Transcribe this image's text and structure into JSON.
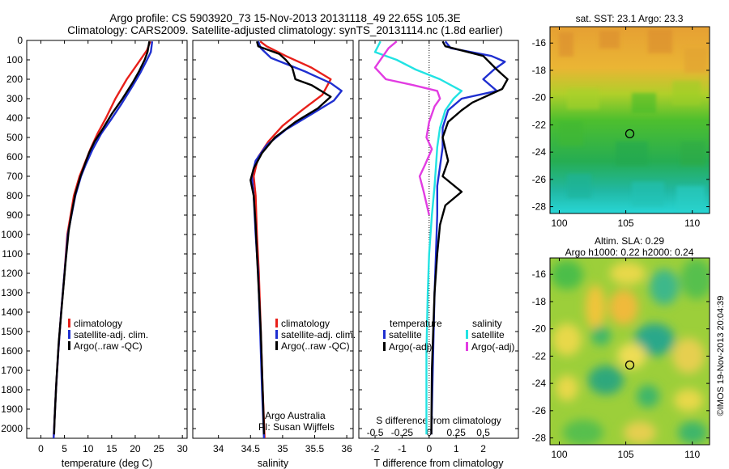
{
  "header": {
    "line1": "Argo profile: CS 5903920_73 15-Nov-2013 20131118_49 22.65S 105.3E",
    "line2": "Climatology: CARS2009. Satellite-adjusted climatology: synTS_20131114.nc (1.8d earlier)"
  },
  "colors": {
    "climatology": "#e8201a",
    "satellite": "#1f2fd0",
    "argo": "#000000",
    "sat_salinity": "#22e3e3",
    "argo_salinity": "#e23ce2"
  },
  "chart_data": [
    {
      "id": "temperature",
      "type": "line",
      "xlabel": "temperature (deg C)",
      "ylabel": "",
      "xlim": [
        -3,
        31
      ],
      "ylim": [
        0,
        2050
      ],
      "xticks": [
        0,
        5,
        10,
        15,
        20,
        25,
        30
      ],
      "yticks": [
        0,
        100,
        200,
        300,
        400,
        500,
        600,
        700,
        800,
        900,
        1000,
        1100,
        1200,
        1300,
        1400,
        1500,
        1600,
        1700,
        1800,
        1900,
        2000
      ],
      "legend": [
        "climatology",
        "satellite-adj. clim.",
        "Argo(..raw -QC)"
      ],
      "series": [
        {
          "name": "climatology",
          "color": "#e8201a",
          "points": [
            [
              23.2,
              5
            ],
            [
              22.5,
              50
            ],
            [
              20.5,
              120
            ],
            [
              18.2,
              200
            ],
            [
              15.8,
              300
            ],
            [
              13.8,
              400
            ],
            [
              12.0,
              480
            ],
            [
              10.5,
              560
            ],
            [
              9.2,
              640
            ],
            [
              8.2,
              700
            ],
            [
              7.0,
              800
            ],
            [
              6.3,
              900
            ],
            [
              5.6,
              1000
            ],
            [
              5.0,
              1200
            ],
            [
              4.3,
              1400
            ],
            [
              3.7,
              1600
            ],
            [
              3.2,
              1800
            ],
            [
              2.8,
              2000
            ],
            [
              2.7,
              2050
            ]
          ]
        },
        {
          "name": "satellite-adj. clim.",
          "color": "#1f2fd0",
          "points": [
            [
              23.6,
              5
            ],
            [
              23.3,
              60
            ],
            [
              22.5,
              100
            ],
            [
              21.0,
              170
            ],
            [
              19.3,
              240
            ],
            [
              17.0,
              330
            ],
            [
              14.8,
              410
            ],
            [
              12.8,
              480
            ],
            [
              11.0,
              560
            ],
            [
              9.5,
              640
            ],
            [
              8.5,
              700
            ],
            [
              7.3,
              800
            ],
            [
              6.5,
              900
            ],
            [
              5.7,
              1000
            ],
            [
              5.0,
              1200
            ],
            [
              4.3,
              1400
            ],
            [
              3.7,
              1600
            ],
            [
              3.2,
              1800
            ],
            [
              2.8,
              2000
            ],
            [
              2.7,
              2050
            ]
          ]
        },
        {
          "name": "Argo(..raw -QC)",
          "color": "#000000",
          "points": [
            [
              23.0,
              5
            ],
            [
              22.6,
              60
            ],
            [
              22.0,
              100
            ],
            [
              20.8,
              160
            ],
            [
              19.4,
              220
            ],
            [
              17.3,
              300
            ],
            [
              15.0,
              380
            ],
            [
              13.0,
              460
            ],
            [
              11.4,
              520
            ],
            [
              10.2,
              580
            ],
            [
              9.3,
              640
            ],
            [
              8.4,
              700
            ],
            [
              7.3,
              790
            ],
            [
              6.6,
              880
            ],
            [
              5.9,
              980
            ],
            [
              5.2,
              1150
            ],
            [
              4.5,
              1350
            ],
            [
              3.8,
              1550
            ],
            [
              3.3,
              1750
            ],
            [
              2.9,
              1950
            ],
            [
              2.8,
              2030
            ]
          ]
        }
      ]
    },
    {
      "id": "salinity",
      "type": "line",
      "xlabel": "salinity",
      "xlim": [
        33.6,
        36.1
      ],
      "ylim": [
        0,
        2050
      ],
      "xticks": [
        34,
        34.5,
        35,
        35.5,
        36
      ],
      "legend": [
        "climatology",
        "satellite-adj. clim.",
        "Argo(..raw -QC)"
      ],
      "annotation": [
        "Argo Australia",
        "PI: Susan Wijffels"
      ],
      "series": [
        {
          "name": "climatology",
          "color": "#e8201a",
          "points": [
            [
              34.65,
              5
            ],
            [
              34.75,
              30
            ],
            [
              35.05,
              80
            ],
            [
              35.45,
              140
            ],
            [
              35.75,
              200
            ],
            [
              35.62,
              280
            ],
            [
              35.3,
              360
            ],
            [
              35.0,
              440
            ],
            [
              34.78,
              520
            ],
            [
              34.62,
              600
            ],
            [
              34.55,
              700
            ],
            [
              34.58,
              800
            ],
            [
              34.6,
              1000
            ],
            [
              34.63,
              1200
            ],
            [
              34.66,
              1500
            ],
            [
              34.69,
              1800
            ],
            [
              34.72,
              2050
            ]
          ]
        },
        {
          "name": "satellite-adj. clim.",
          "color": "#1f2fd0",
          "points": [
            [
              34.62,
              5
            ],
            [
              34.66,
              40
            ],
            [
              34.82,
              90
            ],
            [
              35.35,
              160
            ],
            [
              35.75,
              220
            ],
            [
              35.92,
              260
            ],
            [
              35.8,
              310
            ],
            [
              35.45,
              380
            ],
            [
              35.05,
              460
            ],
            [
              34.75,
              540
            ],
            [
              34.58,
              620
            ],
            [
              34.52,
              700
            ],
            [
              34.55,
              800
            ],
            [
              34.58,
              1000
            ],
            [
              34.62,
              1200
            ],
            [
              34.65,
              1500
            ],
            [
              34.68,
              1800
            ],
            [
              34.71,
              2050
            ]
          ]
        },
        {
          "name": "Argo(..raw -QC)",
          "color": "#000000",
          "points": [
            [
              34.6,
              5
            ],
            [
              34.62,
              30
            ],
            [
              34.95,
              70
            ],
            [
              35.05,
              100
            ],
            [
              35.15,
              140
            ],
            [
              35.2,
              200
            ],
            [
              35.45,
              230
            ],
            [
              35.75,
              290
            ],
            [
              35.55,
              350
            ],
            [
              35.2,
              420
            ],
            [
              34.88,
              500
            ],
            [
              34.68,
              580
            ],
            [
              34.55,
              660
            ],
            [
              34.5,
              720
            ],
            [
              34.55,
              800
            ],
            [
              34.58,
              950
            ],
            [
              34.6,
              1100
            ],
            [
              34.63,
              1300
            ],
            [
              34.66,
              1500
            ],
            [
              34.68,
              1700
            ],
            [
              34.7,
              1900
            ],
            [
              34.71,
              2030
            ]
          ]
        }
      ]
    },
    {
      "id": "difference",
      "type": "line",
      "xlabel": "T difference from climatology",
      "xlabel_top": "S difference from climatology",
      "xlim": [
        -2.6,
        3.3
      ],
      "ylim": [
        0,
        2050
      ],
      "xticks_T": [
        "-2",
        "-1",
        "0",
        "1",
        "2"
      ],
      "xticks_S": [
        "-0.5",
        "-0.25",
        "0",
        "0.25",
        "0.5"
      ],
      "legend_left_title": "temperature",
      "legend_right_title": "salinity",
      "legend": [
        "satellite",
        "Argo(-adj)",
        "satellite",
        "Argo(-adj)"
      ],
      "series": [
        {
          "name": "satellite",
          "kind": "T",
          "color": "#1f2fd0",
          "points": [
            [
              0.6,
              5
            ],
            [
              0.8,
              40
            ],
            [
              2.3,
              80
            ],
            [
              2.8,
              110
            ],
            [
              2.4,
              150
            ],
            [
              2.0,
              200
            ],
            [
              2.5,
              260
            ],
            [
              1.2,
              300
            ],
            [
              0.7,
              360
            ],
            [
              0.5,
              450
            ],
            [
              0.5,
              550
            ],
            [
              0.4,
              650
            ],
            [
              0.3,
              750
            ],
            [
              0.3,
              900
            ],
            [
              0.25,
              1100
            ],
            [
              0.2,
              1300
            ],
            [
              0.15,
              1600
            ],
            [
              0.1,
              1900
            ],
            [
              0.08,
              2030
            ]
          ]
        },
        {
          "name": "Argo(-adj)",
          "kind": "T",
          "color": "#000000",
          "points": [
            [
              0.5,
              5
            ],
            [
              0.6,
              30
            ],
            [
              2.0,
              80
            ],
            [
              2.5,
              150
            ],
            [
              2.9,
              200
            ],
            [
              2.7,
              250
            ],
            [
              1.6,
              320
            ],
            [
              1.2,
              360
            ],
            [
              0.7,
              420
            ],
            [
              0.5,
              500
            ],
            [
              0.6,
              560
            ],
            [
              0.7,
              620
            ],
            [
              0.5,
              700
            ],
            [
              1.2,
              780
            ],
            [
              0.6,
              850
            ],
            [
              0.4,
              950
            ],
            [
              0.3,
              1100
            ],
            [
              0.2,
              1300
            ],
            [
              0.15,
              1500
            ],
            [
              0.1,
              1700
            ],
            [
              0.08,
              2030
            ]
          ]
        },
        {
          "name": "satellite",
          "kind": "S",
          "color": "#22e3e3",
          "points": [
            [
              -1.8,
              5
            ],
            [
              -2.0,
              60
            ],
            [
              -1.2,
              100
            ],
            [
              -0.5,
              150
            ],
            [
              0.4,
              200
            ],
            [
              1.2,
              260
            ],
            [
              0.9,
              300
            ],
            [
              0.6,
              360
            ],
            [
              0.4,
              450
            ],
            [
              0.3,
              550
            ],
            [
              0.25,
              650
            ],
            [
              0.2,
              750
            ],
            [
              0.1,
              900
            ],
            [
              0.0,
              1100
            ],
            [
              -0.05,
              1300
            ],
            [
              -0.1,
              1600
            ],
            [
              -0.1,
              1900
            ],
            [
              -0.1,
              2030
            ]
          ]
        },
        {
          "name": "Argo(-adj)",
          "kind": "S",
          "color": "#e23ce2",
          "points": [
            [
              -1.2,
              5
            ],
            [
              -1.5,
              40
            ],
            [
              -2.0,
              140
            ],
            [
              -1.6,
              200
            ],
            [
              -0.6,
              230
            ],
            [
              0.3,
              260
            ],
            [
              0.4,
              300
            ],
            [
              0.2,
              340
            ],
            [
              0.0,
              420
            ],
            [
              -0.1,
              500
            ],
            [
              0.1,
              560
            ],
            [
              -0.15,
              640
            ],
            [
              -0.35,
              700
            ],
            [
              -0.2,
              780
            ],
            [
              0.0,
              900
            ]
          ]
        }
      ]
    },
    {
      "id": "sst_map",
      "type": "heatmap",
      "title": "sat. SST: 23.1 Argo: 23.3",
      "xlim": [
        99.3,
        111.3
      ],
      "ylim": [
        -28.5,
        -14.8
      ],
      "xticks": [
        100,
        105,
        110
      ],
      "yticks": [
        -16,
        -18,
        -20,
        -22,
        -24,
        -26,
        -28
      ],
      "marker": {
        "lon": 105.3,
        "lat": -22.65
      }
    },
    {
      "id": "sla_map",
      "type": "heatmap",
      "title_line1": "Altim. SLA: 0.29",
      "title_line2": "Argo h1000: 0.22 h2000: 0.24",
      "xlim": [
        99.3,
        111.3
      ],
      "ylim": [
        -28.5,
        -14.8
      ],
      "xticks": [
        100,
        105,
        110
      ],
      "yticks": [
        -16,
        -18,
        -20,
        -22,
        -24,
        -26,
        -28
      ],
      "marker": {
        "lon": 105.3,
        "lat": -22.65
      }
    }
  ],
  "side_label": "©IMOS 19-Nov-2013 20:04:39"
}
